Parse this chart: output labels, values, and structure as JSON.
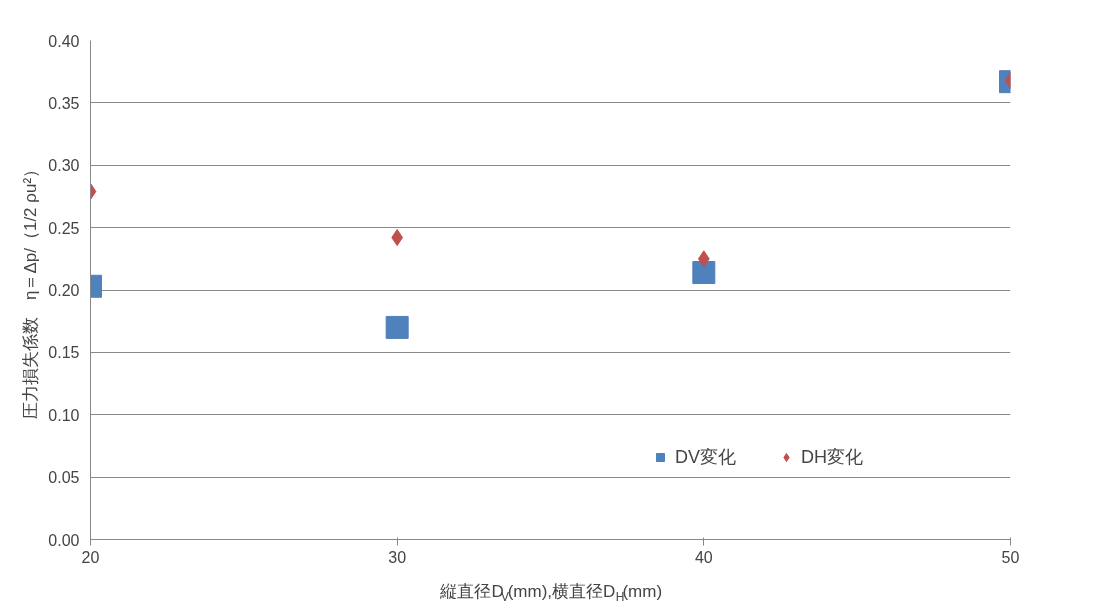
{
  "chart_data": {
    "type": "scatter",
    "xlabel": "縦直径D$_{V}$(mm),横直径D$_{H}$(mm)",
    "ylabel": "圧力損失係数　η＝Δp/（1/2 ρu²）",
    "x": [
      20,
      30,
      40,
      50
    ],
    "series": [
      {
        "name": "DV変化",
        "color": "#4f81bd",
        "marker": "square",
        "values": [
          0.203,
          0.17,
          0.214,
          0.367
        ]
      },
      {
        "name": "DH変化",
        "color": "#c0504d",
        "marker": "diamond",
        "values": [
          0.279,
          0.242,
          0.225,
          0.368
        ]
      }
    ],
    "xlim": [
      20,
      50
    ],
    "xticks": [
      20,
      30,
      40,
      50
    ],
    "ylim": [
      0,
      0.4
    ],
    "yticks": [
      {
        "value": 0,
        "label": "0.00"
      },
      {
        "value": 0.05,
        "label": "0.05"
      },
      {
        "value": 0.1,
        "label": "0.10"
      },
      {
        "value": 0.15,
        "label": "0.15"
      },
      {
        "value": 0.2,
        "label": "0.20"
      },
      {
        "value": 0.25,
        "label": "0.25"
      },
      {
        "value": 0.3,
        "label": "0.30"
      },
      {
        "value": 0.35,
        "label": "0.35"
      },
      {
        "value": 0.4,
        "label": "0.40"
      }
    ],
    "grid": "y",
    "legend": "bottom right"
  }
}
